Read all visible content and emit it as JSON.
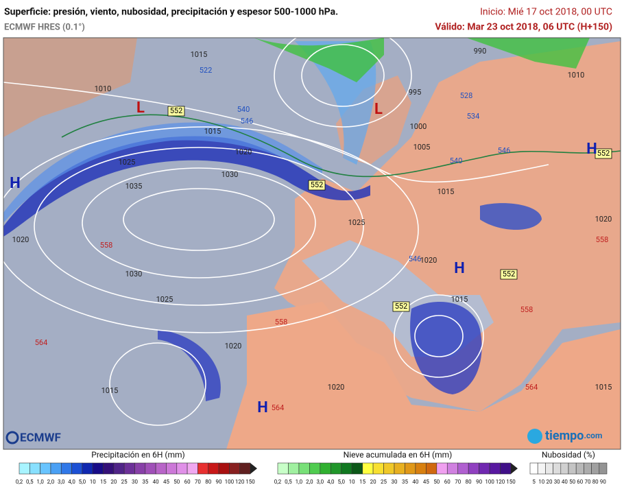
{
  "header": {
    "title": "Superficie: presión, viento, nubosidad, precipitación y espesor 500-1000 hPa.",
    "model": "ECMWF HRES (0.1°)",
    "start": "Inicio: Mié 17 oct 2018, 00 UTC",
    "valid": "Válido: Mar 23 oct 2018, 06 UTC (H+150)"
  },
  "logos": {
    "left": "ECMWF",
    "right": "tiempo",
    "right_suffix": ".com"
  },
  "map": {
    "labels": [
      {
        "text": "1010",
        "color": "#222"
      },
      {
        "text": "1015",
        "color": "#222"
      },
      {
        "text": "1020",
        "color": "#222"
      },
      {
        "text": "1025",
        "color": "#222"
      },
      {
        "text": "1030",
        "color": "#222"
      },
      {
        "text": "1035",
        "color": "#222"
      },
      {
        "text": "1030",
        "color": "#222"
      },
      {
        "text": "1025",
        "color": "#222"
      },
      {
        "text": "1020",
        "color": "#222"
      },
      {
        "text": "1015",
        "color": "#222"
      },
      {
        "text": "1020",
        "color": "#222"
      },
      {
        "text": "1025",
        "color": "#222"
      },
      {
        "text": "1015",
        "color": "#222"
      },
      {
        "text": "1020",
        "color": "#222"
      },
      {
        "text": "1015",
        "color": "#222"
      },
      {
        "text": "1020",
        "color": "#222"
      },
      {
        "text": "1005",
        "color": "#222"
      },
      {
        "text": "1000",
        "color": "#222"
      },
      {
        "text": "995",
        "color": "#222"
      },
      {
        "text": "990",
        "color": "#222"
      },
      {
        "text": "1010",
        "color": "#222"
      },
      {
        "text": "1015",
        "color": "#222"
      },
      {
        "text": "1020",
        "color": "#222"
      },
      {
        "text": "1015",
        "color": "#222"
      },
      {
        "text": "522",
        "color": "#2050c0"
      },
      {
        "text": "540",
        "color": "#2050c0"
      },
      {
        "text": "546",
        "color": "#2050c0"
      },
      {
        "text": "528",
        "color": "#2050c0"
      },
      {
        "text": "534",
        "color": "#2050c0"
      },
      {
        "text": "540",
        "color": "#2050c0"
      },
      {
        "text": "546",
        "color": "#2050c0"
      },
      {
        "text": "546",
        "color": "#2050c0"
      },
      {
        "text": "558",
        "color": "#c02020"
      },
      {
        "text": "558",
        "color": "#c02020"
      },
      {
        "text": "564",
        "color": "#c02020"
      },
      {
        "text": "564",
        "color": "#c02020"
      },
      {
        "text": "558",
        "color": "#c02020"
      },
      {
        "text": "558",
        "color": "#c02020"
      },
      {
        "text": "564",
        "color": "#c02020"
      },
      {
        "text": "552",
        "color": "#000"
      },
      {
        "text": "552",
        "color": "#000"
      },
      {
        "text": "552",
        "color": "#000"
      },
      {
        "text": "552",
        "color": "#000"
      },
      {
        "text": "552",
        "color": "#000"
      },
      {
        "text": "L",
        "color": "#c01010"
      },
      {
        "text": "L",
        "color": "#c01010"
      },
      {
        "text": "H",
        "color": "#1020b0"
      },
      {
        "text": "H",
        "color": "#1020b0"
      },
      {
        "text": "H",
        "color": "#1020b0"
      },
      {
        "text": "H",
        "color": "#1020b0"
      }
    ]
  },
  "legends": [
    {
      "title": "Precipitación en 6H (mm)",
      "labels": [
        "0,2",
        "0,5",
        "1,0",
        "2,0",
        "3,0",
        "4,0",
        "5,0",
        "10",
        "15",
        "20",
        "25",
        "30",
        "35",
        "40",
        "45",
        "50",
        "60",
        "70",
        "80",
        "90",
        "100",
        "120",
        "150"
      ],
      "colors": [
        "#a8f4ff",
        "#88e0ff",
        "#68c4ff",
        "#4aa0f4",
        "#3078e8",
        "#1c50d4",
        "#1028b0",
        "#180c88",
        "#341078",
        "#502488",
        "#6c3098",
        "#8840a8",
        "#a050b8",
        "#b864c8",
        "#cc78d8",
        "#e090e8",
        "#f0a8f0",
        "#e83030",
        "#c81818",
        "#a81010",
        "#882020",
        "#602020"
      ]
    },
    {
      "title": "Nieve acumulada en 6H (mm)",
      "labels": [
        "0,2",
        "0,5",
        "1,0",
        "2,0",
        "3,0",
        "4,0",
        "5,0",
        "10",
        "15",
        "20",
        "25",
        "30",
        "35",
        "40",
        "45",
        "50",
        "60",
        "70",
        "80",
        "90",
        "100",
        "120",
        "150"
      ],
      "colors": [
        "#c8ffc8",
        "#a0f0a0",
        "#78e078",
        "#50cc50",
        "#30b030",
        "#20962a",
        "#107820",
        "#0c5818",
        "#ffff40",
        "#f8e030",
        "#f0c828",
        "#e8b020",
        "#e09818",
        "#d88010",
        "#d06810",
        "#f0a0f0",
        "#d080e0",
        "#b060d0",
        "#9040c0",
        "#7028b0",
        "#5818a0",
        "#401088"
      ]
    },
    {
      "title": "Nubosidad (%)",
      "labels": [
        "5",
        "10",
        "20",
        "30",
        "40",
        "50",
        "60",
        "70",
        "80",
        "90"
      ],
      "colors": [
        "#ffffff",
        "#f4f4f4",
        "#e8e8e8",
        "#dcdcdc",
        "#d0d0d0",
        "#c4c4c4",
        "#b8b8b8",
        "#acacac",
        "#a0a0a0",
        "#949494"
      ]
    }
  ]
}
